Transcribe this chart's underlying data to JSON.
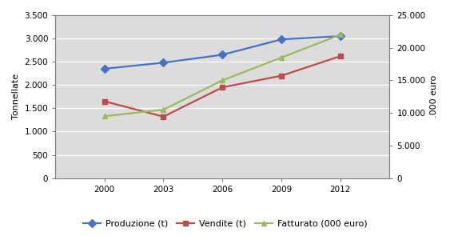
{
  "years": [
    2000,
    2003,
    2006,
    2009,
    2012
  ],
  "produzione": [
    2350,
    2480,
    2650,
    2980,
    3050
  ],
  "vendite": [
    1650,
    1320,
    1950,
    2200,
    2620
  ],
  "fatturato": [
    9500,
    10500,
    15000,
    18500,
    22000
  ],
  "left_ylim": [
    0,
    3500
  ],
  "right_ylim": [
    0,
    25000
  ],
  "left_yticks": [
    0,
    500,
    1000,
    1500,
    2000,
    2500,
    3000,
    3500
  ],
  "right_yticks": [
    0,
    5000,
    10000,
    15000,
    20000,
    25000
  ],
  "left_yticklabels": [
    "0",
    "500",
    "1.000",
    "1.500",
    "2.000",
    "2.500",
    "3.000",
    "3.500"
  ],
  "right_yticklabels": [
    "0",
    "5.000",
    "10.000",
    "15.000",
    "20.000",
    "25.000"
  ],
  "ylabel_left": "Tonnellate",
  "ylabel_right": ".000 euro",
  "produzione_color": "#4472C4",
  "vendite_color": "#BE4B48",
  "fatturato_color": "#9BBB59",
  "legend_labels": [
    "Produzione (t)",
    "Vendite (t)",
    "Fatturato (000 euro)"
  ],
  "background_color": "#FFFFFF",
  "plot_bg_color": "#DCDCDC",
  "grid_color": "#FFFFFF",
  "spine_color": "#808080",
  "tick_fontsize": 7.5,
  "label_fontsize": 8,
  "legend_fontsize": 8
}
